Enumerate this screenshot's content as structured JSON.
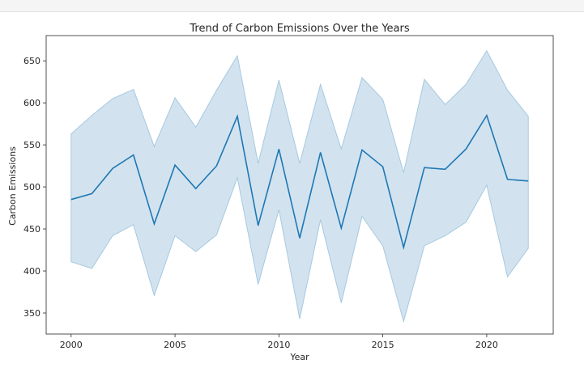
{
  "chart_data": {
    "type": "line",
    "title": "Trend of Carbon Emissions Over the Years",
    "xlabel": "Year",
    "ylabel": "Carbon Emissions",
    "xlim": [
      1998.8,
      2023.2
    ],
    "ylim": [
      325,
      680
    ],
    "xticks": [
      2000,
      2005,
      2010,
      2015,
      2020
    ],
    "yticks": [
      350,
      400,
      450,
      500,
      550,
      600,
      650
    ],
    "grid": false,
    "x": [
      2000,
      2001,
      2002,
      2003,
      2004,
      2005,
      2006,
      2007,
      2008,
      2009,
      2010,
      2011,
      2012,
      2013,
      2014,
      2015,
      2016,
      2017,
      2018,
      2019,
      2020,
      2021,
      2022
    ],
    "series": [
      {
        "values": [
          485,
          492,
          522,
          538,
          456,
          526,
          498,
          525,
          584,
          454,
          545,
          439,
          541,
          451,
          544,
          524,
          428,
          523,
          521,
          545,
          585,
          509,
          507
        ],
        "band_lower": [
          411,
          403,
          442,
          455,
          371,
          442,
          423,
          443,
          511,
          384,
          473,
          343,
          461,
          362,
          465,
          430,
          340,
          430,
          442,
          458,
          502,
          393,
          427
        ],
        "band_upper": [
          563,
          585,
          605,
          616,
          548,
          606,
          571,
          615,
          656,
          528,
          627,
          528,
          622,
          545,
          630,
          604,
          517,
          628,
          598,
          622,
          662,
          615,
          584
        ],
        "color": "#1f77b4",
        "band_color": "#a6c8e0"
      }
    ]
  }
}
